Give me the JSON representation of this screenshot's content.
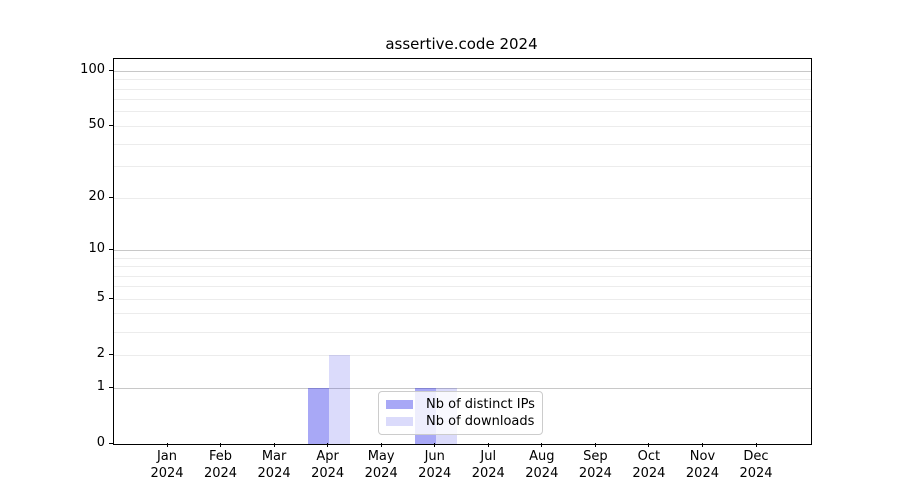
{
  "title": "assertive.code 2024",
  "chart_data": {
    "type": "bar",
    "title": "assertive.code 2024",
    "categories": [
      "Jan",
      "Feb",
      "Mar",
      "Apr",
      "May",
      "Jun",
      "Jul",
      "Aug",
      "Sep",
      "Oct",
      "Nov",
      "Dec"
    ],
    "year_label": "2024",
    "series": [
      {
        "name": "Nb of distinct IPs",
        "color": "#a9a9f7",
        "fill": "rgba(0,0,230,0.34)",
        "values": [
          0,
          0,
          0,
          1,
          0,
          1,
          0,
          0,
          0,
          0,
          0,
          0
        ]
      },
      {
        "name": "Nb of downloads",
        "color": "#dbdcf9",
        "fill": "rgba(0,0,230,0.14)",
        "values": [
          0,
          0,
          0,
          2,
          0,
          1,
          0,
          0,
          0,
          0,
          0,
          0
        ]
      }
    ],
    "xlabel": "",
    "ylabel": "",
    "y_axis": {
      "scale": "log1p",
      "tick_values": [
        0,
        1,
        2,
        5,
        10,
        20,
        50,
        100
      ],
      "major_gridlines": [
        1,
        10,
        100
      ],
      "minor_gridlines": [
        2,
        3,
        4,
        5,
        6,
        7,
        8,
        9,
        20,
        30,
        40,
        50,
        60,
        70,
        80,
        90
      ],
      "ylim": [
        0,
        116
      ]
    },
    "grid": true,
    "legend_position": "lower-center-inside"
  },
  "colors": {
    "background": "#ffffff",
    "axis": "#000000",
    "grid_major": "#c8c8c8",
    "grid_minor": "#ececec",
    "legend_border": "#cccccc",
    "text": "#000000"
  }
}
